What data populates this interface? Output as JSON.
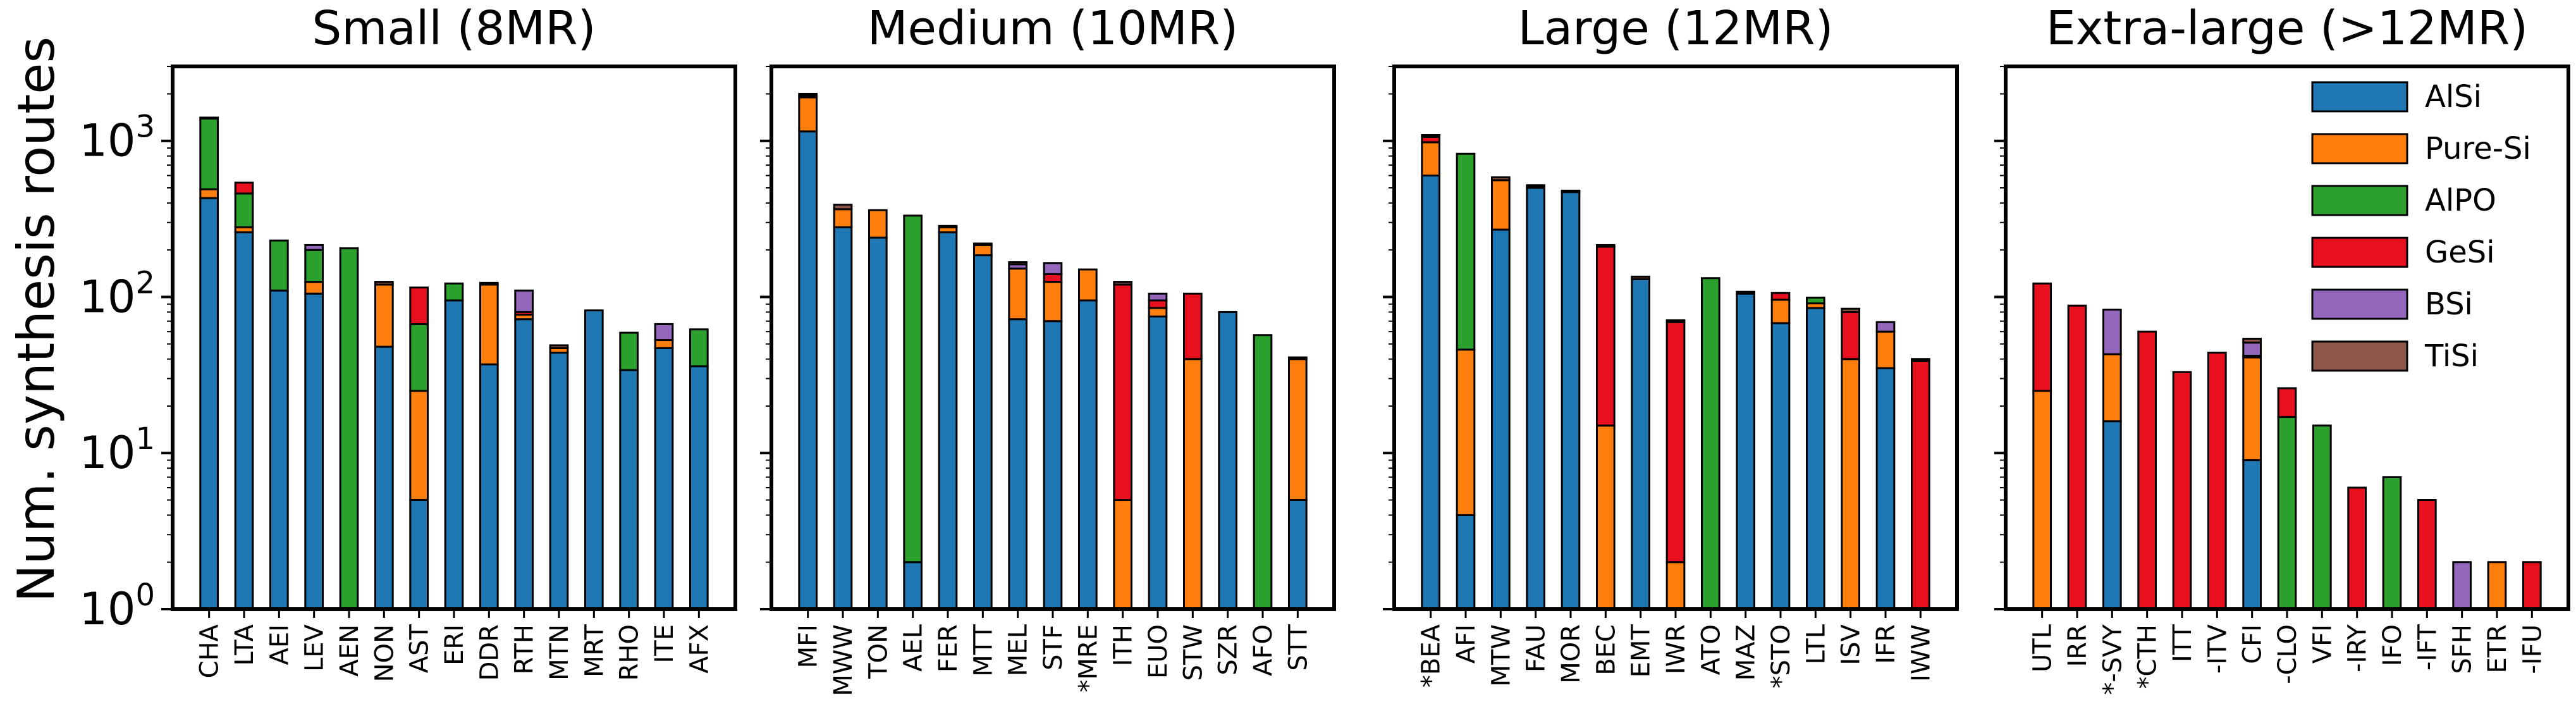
{
  "chart_data": {
    "type": "bar",
    "stacked": true,
    "yscale": "log",
    "ylabel": "Num. synthesis routes",
    "ylim": [
      1,
      3000
    ],
    "yticks": [
      {
        "value": 1,
        "base": "10",
        "exp": "0"
      },
      {
        "value": 10,
        "base": "10",
        "exp": "1"
      },
      {
        "value": 100,
        "base": "10",
        "exp": "2"
      },
      {
        "value": 1000,
        "base": "10",
        "exp": "3"
      }
    ],
    "legend": {
      "placement": "top-right (last panel)"
    },
    "series": [
      {
        "name": "AlSi",
        "color": "#1f77b4"
      },
      {
        "name": "Pure-Si",
        "color": "#ff7f0e"
      },
      {
        "name": "AlPO",
        "color": "#2ca02c"
      },
      {
        "name": "GeSi",
        "color": "#e8101e"
      },
      {
        "name": "BSi",
        "color": "#9467bd"
      },
      {
        "name": "TiSi",
        "color": "#8c564b"
      }
    ],
    "panels": [
      {
        "title": "Small (8MR)",
        "categories": [
          "CHA",
          "LTA",
          "AEI",
          "LEV",
          "AEN",
          "NON",
          "AST",
          "ERI",
          "DDR",
          "RTH",
          "MTN",
          "MRT",
          "RHO",
          "ITE",
          "AFX"
        ],
        "values": {
          "AlSi": [
            430,
            260,
            110,
            105,
            0,
            48,
            5,
            95,
            37,
            72,
            44,
            82,
            34,
            47,
            36
          ],
          "Pure-Si": [
            60,
            20,
            0,
            20,
            0,
            72,
            20,
            0,
            83,
            5,
            3,
            0,
            0,
            6,
            0
          ],
          "AlPO": [
            900,
            180,
            120,
            75,
            205,
            0,
            42,
            27,
            0,
            0,
            0,
            0,
            25,
            0,
            26
          ],
          "GeSi": [
            0,
            80,
            0,
            0,
            0,
            0,
            48,
            0,
            0,
            3,
            0,
            0,
            0,
            0,
            0
          ],
          "BSi": [
            0,
            0,
            0,
            15,
            0,
            0,
            0,
            0,
            0,
            30,
            0,
            0,
            0,
            14,
            0
          ],
          "TiSi": [
            20,
            0,
            0,
            0,
            0,
            5,
            0,
            0,
            3,
            0,
            2,
            0,
            0,
            0,
            0
          ]
        }
      },
      {
        "title": "Medium (10MR)",
        "categories": [
          "MFI",
          "MWW",
          "TON",
          "AEL",
          "FER",
          "MTT",
          "MEL",
          "STF",
          "*MRE",
          "ITH",
          "EUO",
          "STW",
          "SZR",
          "AFO",
          "STT"
        ],
        "values": {
          "AlSi": [
            1150,
            280,
            240,
            2,
            260,
            185,
            72,
            70,
            95,
            0,
            75,
            0,
            80,
            0,
            5
          ],
          "Pure-Si": [
            750,
            85,
            120,
            0,
            20,
            30,
            80,
            55,
            55,
            5,
            10,
            40,
            0,
            0,
            35
          ],
          "AlPO": [
            0,
            0,
            0,
            330,
            0,
            0,
            0,
            0,
            0,
            0,
            0,
            0,
            0,
            57,
            0
          ],
          "GeSi": [
            50,
            0,
            0,
            0,
            0,
            0,
            0,
            15,
            0,
            115,
            10,
            65,
            0,
            0,
            0
          ],
          "BSi": [
            0,
            0,
            0,
            0,
            0,
            0,
            10,
            25,
            0,
            0,
            10,
            0,
            0,
            0,
            0
          ],
          "TiSi": [
            50,
            25,
            0,
            0,
            5,
            5,
            5,
            0,
            0,
            5,
            0,
            0,
            0,
            0,
            1
          ]
        }
      },
      {
        "title": "Large (12MR)",
        "categories": [
          "*BEA",
          "AFI",
          "MTW",
          "FAU",
          "MOR",
          "BEC",
          "EMT",
          "IWR",
          "ATO",
          "MAZ",
          "*STO",
          "LTL",
          "ISV",
          "IFR",
          "IWW"
        ],
        "values": {
          "AlSi": [
            600,
            4,
            270,
            500,
            470,
            0,
            130,
            0,
            0,
            105,
            68,
            85,
            0,
            35,
            0
          ],
          "Pure-Si": [
            380,
            42,
            290,
            10,
            5,
            15,
            0,
            2,
            0,
            0,
            28,
            6,
            40,
            25,
            0
          ],
          "AlPO": [
            0,
            780,
            0,
            0,
            0,
            0,
            0,
            0,
            132,
            0,
            0,
            8,
            0,
            0,
            0
          ],
          "GeSi": [
            80,
            0,
            0,
            0,
            0,
            195,
            0,
            67,
            0,
            0,
            10,
            0,
            40,
            0,
            39
          ],
          "BSi": [
            0,
            0,
            0,
            0,
            0,
            0,
            0,
            0,
            0,
            0,
            0,
            0,
            0,
            9,
            0
          ],
          "TiSi": [
            30,
            0,
            25,
            10,
            5,
            5,
            5,
            2,
            0,
            3,
            0,
            0,
            4,
            0,
            1
          ]
        }
      },
      {
        "title": "Extra-large (>12MR)",
        "categories": [
          "UTL",
          "IRR",
          "*-SVY",
          "*CTH",
          "ITT",
          "-ITV",
          "CFI",
          "-CLO",
          "VFI",
          "-IRY",
          "IFO",
          "-IFT",
          "SFH",
          "ETR",
          "-IFU"
        ],
        "values": {
          "AlSi": [
            0,
            0,
            16,
            0,
            0,
            0,
            9,
            0,
            0,
            0,
            0,
            0,
            0,
            0,
            0
          ],
          "Pure-Si": [
            25,
            0,
            27,
            0,
            0,
            0,
            32,
            0,
            0,
            0,
            0,
            0,
            0,
            2,
            0
          ],
          "AlPO": [
            0,
            0,
            0,
            0,
            0,
            0,
            0,
            17,
            15,
            0,
            7,
            0,
            0,
            0,
            0
          ],
          "GeSi": [
            97,
            88,
            0,
            60,
            33,
            44,
            1,
            9,
            0,
            6,
            0,
            5,
            0,
            0,
            2
          ],
          "BSi": [
            0,
            0,
            40,
            0,
            0,
            0,
            9,
            0,
            0,
            0,
            0,
            0,
            2,
            0,
            0
          ],
          "TiSi": [
            0,
            0,
            0,
            0,
            0,
            0,
            3,
            0,
            0,
            0,
            0,
            0,
            0,
            0,
            0
          ]
        }
      }
    ]
  }
}
